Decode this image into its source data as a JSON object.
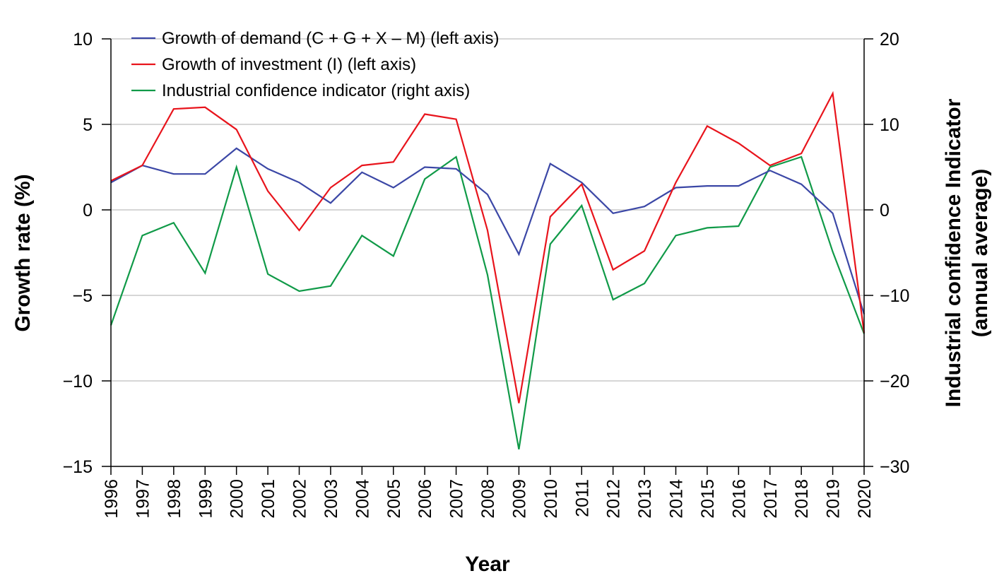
{
  "chart_data": {
    "type": "line",
    "xlabel": "Year",
    "ylabel_left": "Growth rate (%)",
    "ylabel_right": [
      "Industrial confidence Indicator",
      "(annual average)"
    ],
    "categories": [
      "1996",
      "1997",
      "1998",
      "1999",
      "2000",
      "2001",
      "2002",
      "2003",
      "2004",
      "2005",
      "2006",
      "2007",
      "2008",
      "2009",
      "2010",
      "2011",
      "2012",
      "2013",
      "2014",
      "2015",
      "2016",
      "2017",
      "2018",
      "2019",
      "2020"
    ],
    "left_axis": {
      "ylim": [
        -15,
        10
      ],
      "ticks": [
        10,
        5,
        0,
        -5,
        -10,
        -15
      ],
      "tick_labels": [
        "10",
        "5",
        "0",
        "−5",
        "−10",
        "−15"
      ]
    },
    "right_axis": {
      "ylim": [
        -30,
        20
      ],
      "ticks": [
        20,
        10,
        0,
        -10,
        -20,
        -30
      ],
      "tick_labels": [
        "20",
        "10",
        "0",
        "−10",
        "−20",
        "−30"
      ]
    },
    "grid": "horizontal",
    "legend_position": "top-left",
    "series": [
      {
        "name": "Growth of demand (C + G + X – M) (left axis)",
        "axis": "left",
        "color": "#3b47a6",
        "values": [
          1.6,
          2.6,
          2.1,
          2.1,
          3.6,
          2.4,
          1.6,
          0.4,
          2.2,
          1.3,
          2.5,
          2.4,
          0.9,
          -2.6,
          2.7,
          1.6,
          -0.2,
          0.2,
          1.3,
          1.4,
          1.4,
          2.3,
          1.5,
          -0.2,
          -6.1
        ]
      },
      {
        "name": "Growth of investment (I) (left axis)",
        "axis": "left",
        "color": "#e8141c",
        "values": [
          1.7,
          2.6,
          5.9,
          6.0,
          4.7,
          1.1,
          -1.2,
          1.3,
          2.6,
          2.8,
          5.6,
          5.3,
          -1.2,
          -11.3,
          -0.4,
          1.5,
          -3.5,
          -2.4,
          1.6,
          4.9,
          3.9,
          2.6,
          3.3,
          6.8,
          -7.2
        ]
      },
      {
        "name": "Industrial confidence indicator (right axis)",
        "axis": "right",
        "color": "#109a48",
        "values": [
          -13.5,
          -3.0,
          -1.5,
          -7.4,
          5.0,
          -7.5,
          -9.5,
          -8.9,
          -3.0,
          -5.4,
          3.6,
          6.2,
          -7.6,
          -28.0,
          -4.0,
          0.5,
          -10.5,
          -8.6,
          -3.0,
          -2.1,
          -1.9,
          5.0,
          6.2,
          -4.9,
          -14.5
        ]
      }
    ]
  }
}
